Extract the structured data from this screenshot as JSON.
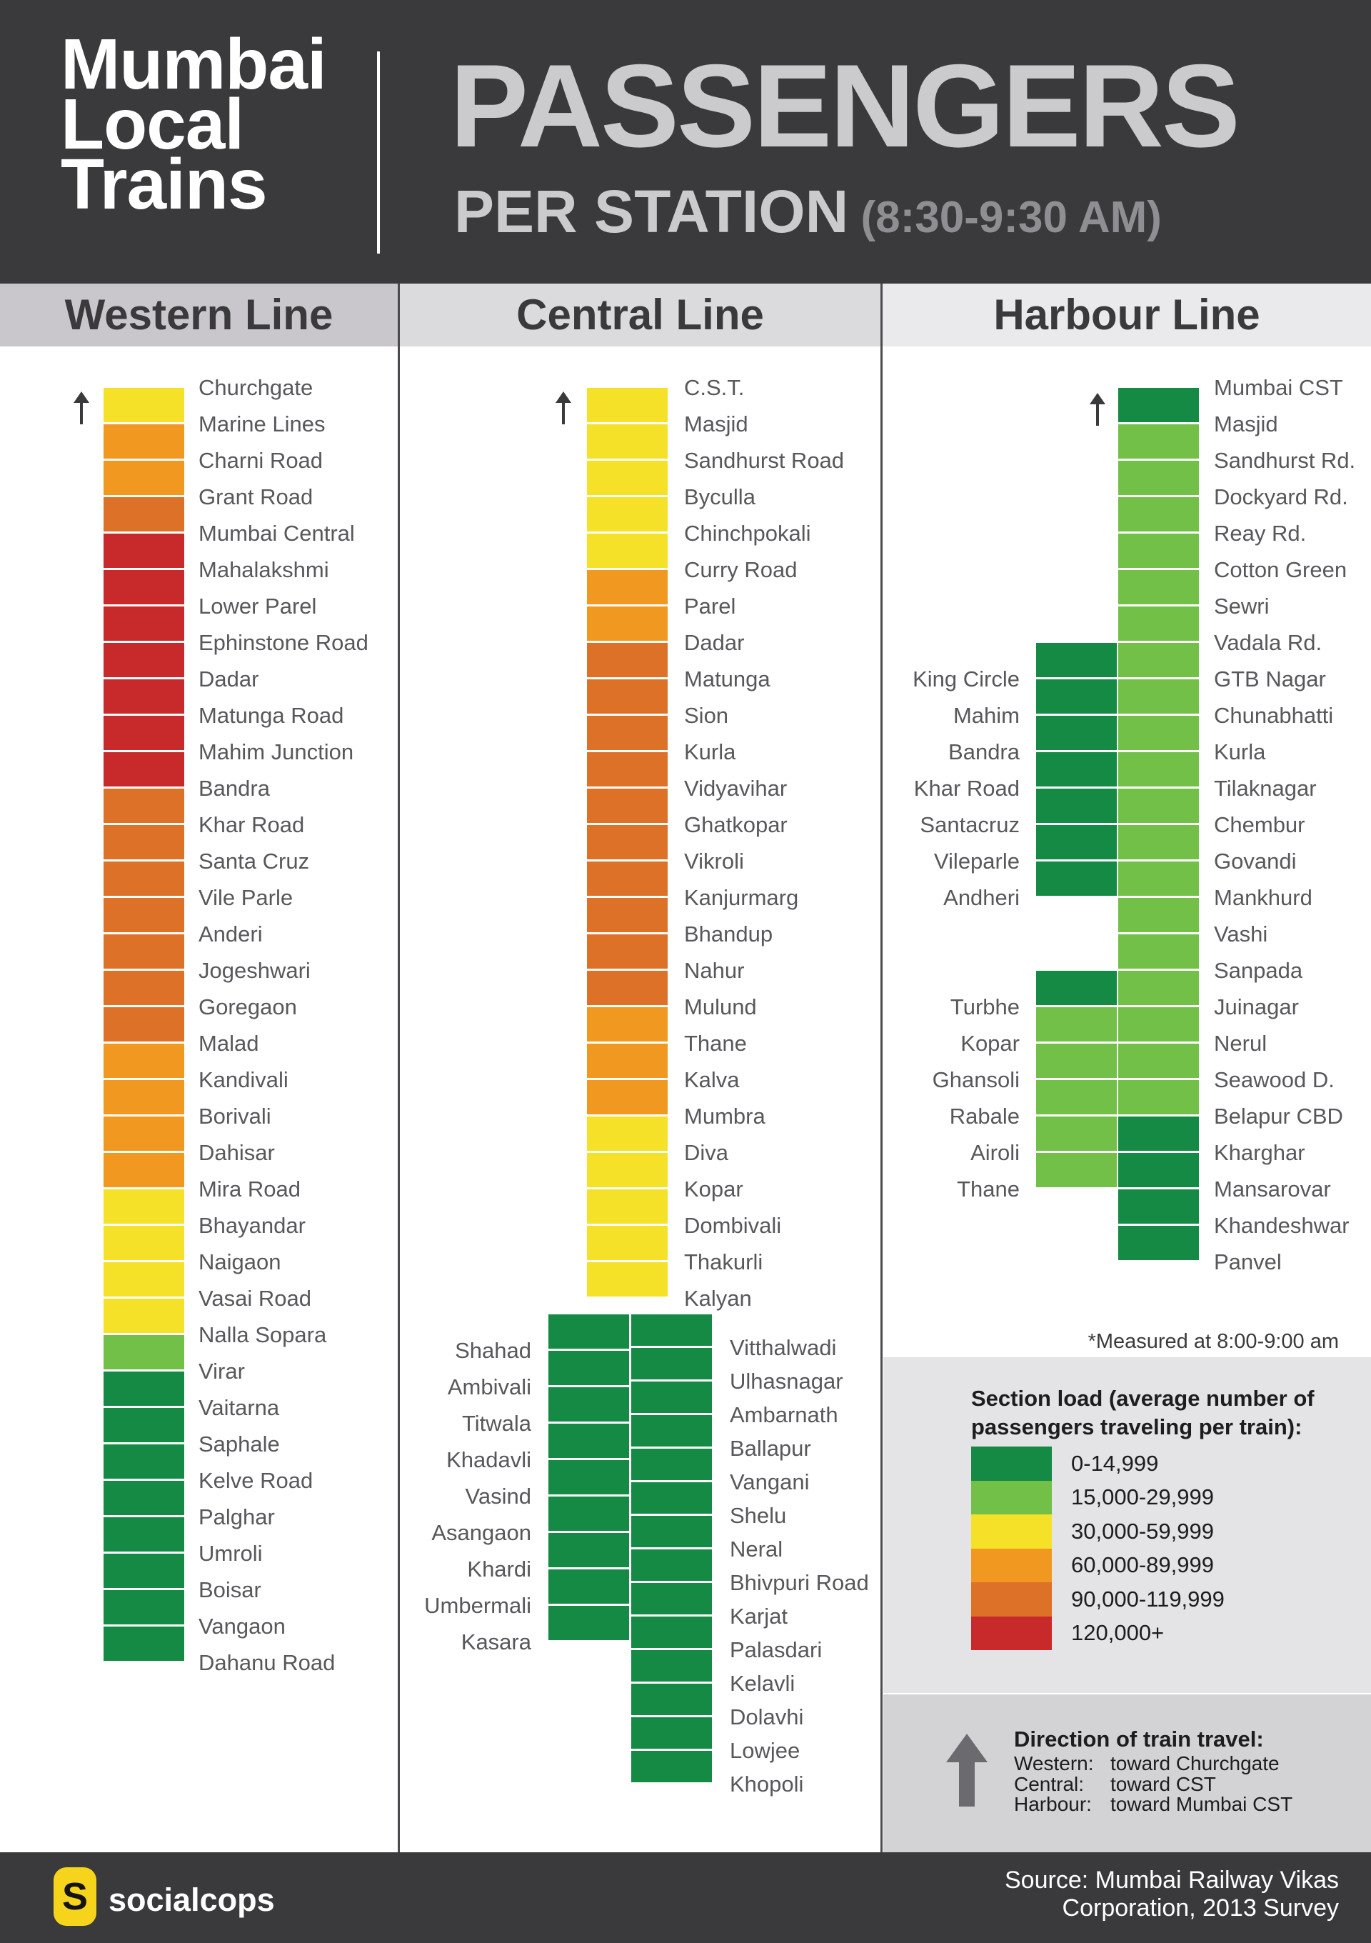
{
  "header": {
    "brand_lines": [
      "Mumbai",
      "Local",
      "Trains"
    ],
    "title": "PASSENGERS",
    "subtitle": "PER STATION",
    "time_range": " (8:30-9:30 AM)"
  },
  "harbour_note": "*Measured at 8:00-9:00 am",
  "legend": {
    "title_line1": "Section load (average number of",
    "title_line2": "passengers traveling per train):",
    "bins": [
      {
        "label": "0-14,999",
        "color": "#148A45"
      },
      {
        "label": "15,000-29,999",
        "color": "#72C047"
      },
      {
        "label": "30,000-59,999",
        "color": "#F5E128"
      },
      {
        "label": "60,000-89,999",
        "color": "#F0981F"
      },
      {
        "label": "90,000-119,999",
        "color": "#DD7128"
      },
      {
        "label": "120,000+",
        "color": "#C8292B"
      }
    ]
  },
  "direction": {
    "title": "Direction of train travel:",
    "rows": [
      {
        "line": "Western:",
        "dest": "toward Churchgate"
      },
      {
        "line": "Central:",
        "dest": "toward CST"
      },
      {
        "line": "Harbour:",
        "dest": "toward Mumbai CST"
      }
    ]
  },
  "footer": {
    "logo_letter": "S",
    "brand": "socialcops",
    "source_line1": "Source: Mumbai Railway Vikas",
    "source_line2": "Corporation, 2013 Survey"
  },
  "chart_data": {
    "type": "heatmap",
    "title": "Mumbai Local Trains — Passengers per station (8:30-9:30 AM)",
    "legend_title": "Section load (average number of passengers traveling per train)",
    "bins": [
      "0-14,999",
      "15,000-29,999",
      "30,000-59,999",
      "60,000-89,999",
      "90,000-119,999",
      "120,000+"
    ],
    "lines": [
      {
        "name": "Western Line",
        "direction": "toward Churchgate",
        "segments": [
          {
            "id": "main",
            "mode": "main",
            "stations": [
              "Churchgate",
              "Marine Lines",
              "Charni Road",
              "Grant Road",
              "Mumbai Central",
              "Mahalakshmi",
              "Lower Parel",
              "Ephinstone Road",
              "Dadar",
              "Matunga Road",
              "Mahim Junction",
              "Bandra",
              "Khar Road",
              "Santa Cruz",
              "Vile Parle",
              "Anderi",
              "Jogeshwari",
              "Goregaon",
              "Malad",
              "Kandivali",
              "Borivali",
              "Dahisar",
              "Mira Road",
              "Bhayandar",
              "Naigaon",
              "Vasai Road",
              "Nalla Sopara",
              "Virar",
              "Vaitarna",
              "Saphale",
              "Kelve Road",
              "Palghar",
              "Umroli",
              "Boisar",
              "Vangaon",
              "Dahanu Road"
            ],
            "section_loads": [
              "30,000-59,999",
              "60,000-89,999",
              "60,000-89,999",
              "90,000-119,999",
              "120,000+",
              "120,000+",
              "120,000+",
              "120,000+",
              "120,000+",
              "120,000+",
              "120,000+",
              "90,000-119,999",
              "90,000-119,999",
              "90,000-119,999",
              "90,000-119,999",
              "90,000-119,999",
              "90,000-119,999",
              "90,000-119,999",
              "60,000-89,999",
              "60,000-89,999",
              "60,000-89,999",
              "60,000-89,999",
              "30,000-59,999",
              "30,000-59,999",
              "30,000-59,999",
              "30,000-59,999",
              "15,000-29,999",
              "0-14,999",
              "0-14,999",
              "0-14,999",
              "0-14,999",
              "0-14,999",
              "0-14,999",
              "0-14,999",
              "0-14,999"
            ]
          }
        ]
      },
      {
        "name": "Central Line",
        "direction": "toward CST",
        "segments": [
          {
            "id": "main",
            "mode": "main",
            "stations": [
              "C.S.T.",
              "Masjid",
              "Sandhurst Road",
              "Byculla",
              "Chinchpokali",
              "Curry Road",
              "Parel",
              "Dadar",
              "Matunga",
              "Sion",
              "Kurla",
              "Vidyavihar",
              "Ghatkopar",
              "Vikroli",
              "Kanjurmarg",
              "Bhandup",
              "Nahur",
              "Mulund",
              "Thane",
              "Kalva",
              "Mumbra",
              "Diva",
              "Kopar",
              "Dombivali",
              "Thakurli",
              "Kalyan"
            ],
            "section_loads": [
              "30,000-59,999",
              "30,000-59,999",
              "30,000-59,999",
              "30,000-59,999",
              "30,000-59,999",
              "60,000-89,999",
              "60,000-89,999",
              "90,000-119,999",
              "90,000-119,999",
              "90,000-119,999",
              "90,000-119,999",
              "90,000-119,999",
              "90,000-119,999",
              "90,000-119,999",
              "90,000-119,999",
              "90,000-119,999",
              "90,000-119,999",
              "60,000-89,999",
              "60,000-89,999",
              "60,000-89,999",
              "30,000-59,999",
              "30,000-59,999",
              "30,000-59,999",
              "30,000-59,999",
              "30,000-59,999"
            ]
          },
          {
            "id": "branch-kasara",
            "mode": "branch",
            "stations": [
              "Shahad",
              "Ambivali",
              "Titwala",
              "Khadavli",
              "Vasind",
              "Asangaon",
              "Khardi",
              "Umbermali",
              "Kasara"
            ],
            "section_loads": [
              "0-14,999",
              "0-14,999",
              "0-14,999",
              "0-14,999",
              "0-14,999",
              "0-14,999",
              "0-14,999",
              "0-14,999",
              "0-14,999"
            ]
          },
          {
            "id": "branch-khopoli",
            "mode": "branch",
            "stations": [
              "Vitthalwadi",
              "Ulhasnagar",
              "Ambarnath",
              "Ballapur",
              "Vangani",
              "Shelu",
              "Neral",
              "Bhivpuri Road",
              "Karjat",
              "Palasdari",
              "Kelavli",
              "Dolavhi",
              "Lowjee",
              "Khopoli"
            ],
            "section_loads": [
              "0-14,999",
              "0-14,999",
              "0-14,999",
              "0-14,999",
              "0-14,999",
              "0-14,999",
              "0-14,999",
              "0-14,999",
              "0-14,999",
              "0-14,999",
              "0-14,999",
              "0-14,999",
              "0-14,999",
              "0-14,999"
            ]
          }
        ]
      },
      {
        "name": "Harbour Line",
        "direction": "toward Mumbai CST",
        "note": "*Measured at 8:00-9:00 am",
        "segments": [
          {
            "id": "main",
            "mode": "main",
            "stations": [
              "Mumbai CST",
              "Masjid",
              "Sandhurst Rd.",
              "Dockyard Rd.",
              "Reay Rd.",
              "Cotton Green",
              "Sewri",
              "Vadala Rd.",
              "GTB Nagar",
              "Chunabhatti",
              "Kurla",
              "Tilaknagar",
              "Chembur",
              "Govandi",
              "Mankhurd",
              "Vashi",
              "Sanpada",
              "Juinagar",
              "Nerul",
              "Seawood D.",
              "Belapur CBD",
              "Kharghar",
              "Mansarovar",
              "Khandeshwar",
              "Panvel"
            ],
            "section_loads": [
              "0-14,999",
              "15,000-29,999",
              "15,000-29,999",
              "15,000-29,999",
              "15,000-29,999",
              "15,000-29,999",
              "15,000-29,999",
              "15,000-29,999",
              "15,000-29,999",
              "15,000-29,999",
              "15,000-29,999",
              "15,000-29,999",
              "15,000-29,999",
              "15,000-29,999",
              "15,000-29,999",
              "15,000-29,999",
              "15,000-29,999",
              "15,000-29,999",
              "15,000-29,999",
              "15,000-29,999",
              "0-14,999",
              "0-14,999",
              "0-14,999",
              "0-14,999"
            ]
          },
          {
            "id": "branch-king-circle",
            "mode": "branch",
            "stations": [
              "King Circle",
              "Mahim",
              "Bandra",
              "Khar Road",
              "Santacruz",
              "Vileparle",
              "Andheri"
            ],
            "section_loads": [
              "0-14,999",
              "0-14,999",
              "0-14,999",
              "0-14,999",
              "0-14,999",
              "0-14,999",
              "0-14,999"
            ]
          },
          {
            "id": "branch-trans-harbour",
            "mode": "branch",
            "stations": [
              "Turbhe",
              "Kopar",
              "Ghansoli",
              "Rabale",
              "Airoli",
              "Thane"
            ],
            "section_loads": [
              "0-14,999",
              "15,000-29,999",
              "15,000-29,999",
              "15,000-29,999",
              "15,000-29,999",
              "15,000-29,999"
            ]
          }
        ]
      }
    ]
  }
}
